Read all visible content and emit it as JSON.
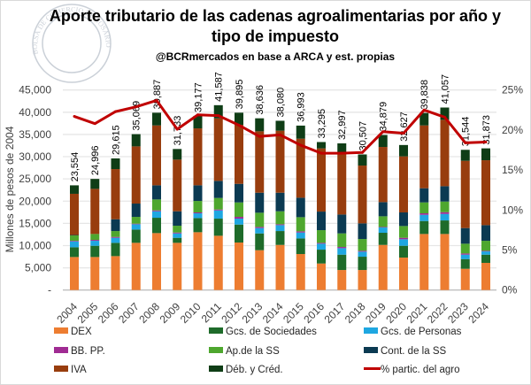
{
  "logo": {
    "text": "BOLSA DE COMERCIO DE ROSARIO"
  },
  "chart_data": {
    "type": "bar",
    "stacked": true,
    "title": "Aporte tributario de las cadenas agroalimentarias por año y tipo de impuesto",
    "title_lines": [
      "Aporte tributario de las cadenas agroalimentarias por año y",
      "tipo de impuesto"
    ],
    "subtitle": "@BCRmercados en base a ARCA y est. propias",
    "ylabel": "Millones de pesos de 2004",
    "ylim": [
      0,
      45000
    ],
    "yticks": [
      "-",
      "5,000",
      "10,000",
      "15,000",
      "20,000",
      "25,000",
      "30,000",
      "35,000",
      "40,000",
      "45,000"
    ],
    "y2lim": [
      0,
      25
    ],
    "y2ticks": [
      "0%",
      "5%",
      "10%",
      "15%",
      "20%",
      "25%"
    ],
    "grid": true,
    "legend_position": "bottom",
    "categories": [
      "2004",
      "2005",
      "2006",
      "2007",
      "2008",
      "2009",
      "2010",
      "2011",
      "2012",
      "2013",
      "2014",
      "2015",
      "2016",
      "2017",
      "2018",
      "2019",
      "2020",
      "2021",
      "2022",
      "2023",
      "2024"
    ],
    "totals": [
      "23,554",
      "24,996",
      "29,615",
      "35,069",
      "39,887",
      "31,733",
      "39,177",
      "41,587",
      "39,895",
      "38,636",
      "38,080",
      "36,993",
      "33,295",
      "32,997",
      "30,507",
      "34,879",
      "32,627",
      "39,838",
      "41,057",
      "31,544",
      "31,873"
    ],
    "series": [
      {
        "name": "DEX",
        "color": "#ed7d31",
        "values": [
          7430,
          7430,
          7630,
          10620,
          12810,
          10620,
          13010,
          12210,
          10690,
          8960,
          10150,
          8100,
          5970,
          4510,
          4510,
          10150,
          7300,
          12610,
          12610,
          4780,
          6110
        ]
      },
      {
        "name": "Gcs. de Sociedades",
        "color": "#1e6b2a",
        "values": [
          2190,
          2530,
          2990,
          2990,
          3450,
          1130,
          3180,
          3850,
          4040,
          3780,
          3120,
          3510,
          3120,
          3450,
          2990,
          2730,
          2660,
          2920,
          3050,
          2190,
          1850
        ]
      },
      {
        "name": "Gcs. de Personas",
        "color": "#1ea7e1",
        "values": [
          1330,
          1120,
          1130,
          1190,
          1460,
          990,
          1070,
          1860,
          1330,
          1200,
          1330,
          1330,
          1330,
          1460,
          1130,
          1190,
          1460,
          1390,
          1460,
          990,
          730
        ]
      },
      {
        "name": "BB. PP.",
        "color": "#a02b93",
        "values": [
          130,
          200,
          200,
          130,
          200,
          200,
          200,
          200,
          400,
          260,
          200,
          270,
          200,
          270,
          200,
          130,
          330,
          340,
          400,
          270,
          140
        ]
      },
      {
        "name": "Ap.de la SS",
        "color": "#4ea72e",
        "values": [
          1200,
          1330,
          1320,
          1530,
          2460,
          1530,
          2580,
          2590,
          3250,
          3190,
          2920,
          3180,
          2850,
          3050,
          2650,
          2390,
          2650,
          2450,
          2390,
          2190,
          2250
        ]
      },
      {
        "name": "Cont. de la SS",
        "color": "#0b3a52",
        "values": [
          100,
          0,
          2660,
          2990,
          3180,
          3250,
          3520,
          3850,
          4180,
          4510,
          4180,
          4380,
          4180,
          4250,
          3520,
          3190,
          3060,
          3190,
          3450,
          3520,
          3520
        ]
      },
      {
        "name": "IVA",
        "color": "#983d0e",
        "values": [
          9270,
          10150,
          11280,
          12870,
          13470,
          11620,
          12810,
          14070,
          13280,
          13810,
          13940,
          13280,
          14210,
          13870,
          13010,
          12410,
          12610,
          14130,
          14940,
          15130,
          14600
        ]
      },
      {
        "name": "Déb. y Créd.",
        "color": "#0f3d16",
        "values": [
          1904,
          2236,
          2405,
          2749,
          2857,
          2393,
          2807,
          2957,
          2725,
          2926,
          2240,
          2943,
          1435,
          2137,
          2497,
          2689,
          2557,
          2808,
          2757,
          2474,
          2673
        ]
      }
    ],
    "line": {
      "name": "% partic. del agro",
      "color": "#c00000",
      "axis": "right",
      "values": [
        21.7,
        20.8,
        22.3,
        22.9,
        23.7,
        20.1,
        21.9,
        21.8,
        20.6,
        19.2,
        19.4,
        18.1,
        17.1,
        17.1,
        17.2,
        19.8,
        19.6,
        22.5,
        21.6,
        18.4,
        18.5
      ]
    }
  }
}
